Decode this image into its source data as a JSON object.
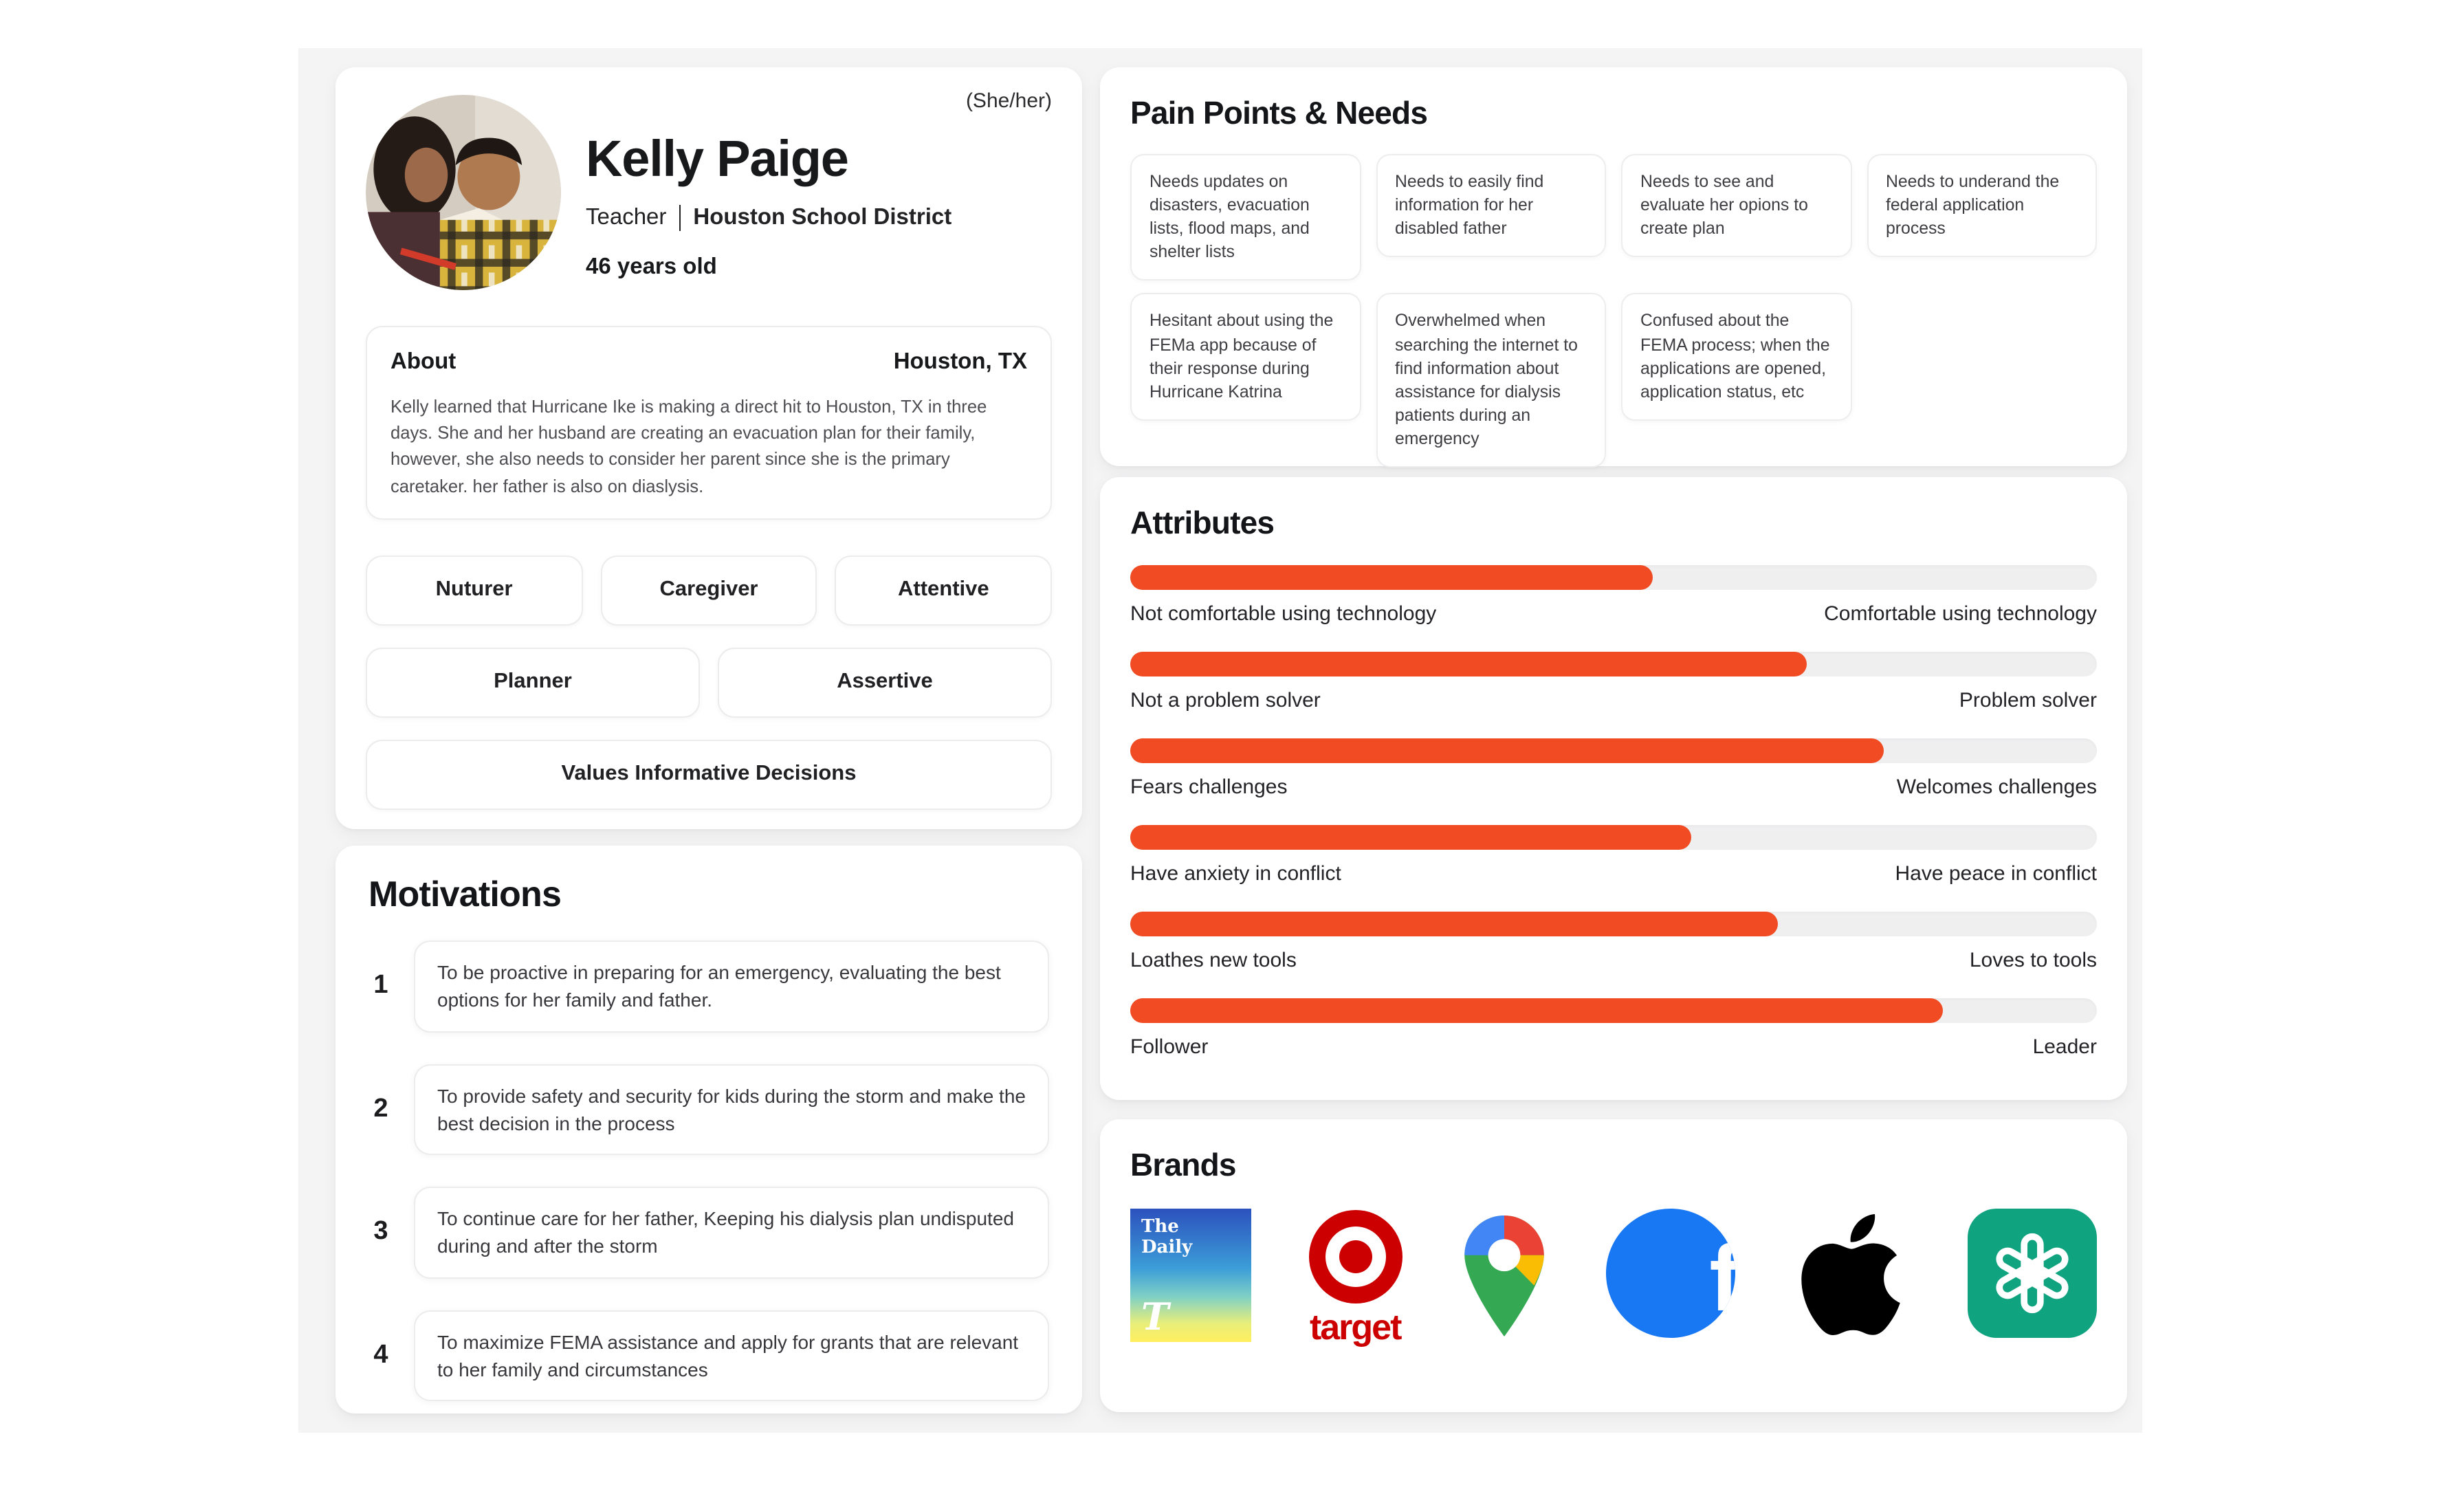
{
  "profile": {
    "pronouns": "(She/her)",
    "name": "Kelly Paige",
    "role": "Teacher",
    "org": "Houston School District",
    "age": "46 years old",
    "about_title": "About",
    "location": "Houston, TX",
    "about_text": "Kelly learned that Hurricane Ike is making a direct hit to Houston, TX in three days. She and her husband are creating an evacuation plan for their family, however, she also needs to consider her parent since she is the primary caretaker. her father is also on diaslysis.",
    "tags": [
      "Nuturer",
      "Caregiver",
      "Attentive",
      "Planner",
      "Assertive",
      "Values Informative Decisions"
    ]
  },
  "motivations": {
    "title": "Motivations",
    "items": [
      {
        "num": "1",
        "text": "To be proactive in preparing for an emergency, evaluating the best options for her family and father."
      },
      {
        "num": "2",
        "text": "To provide safety and security for kids during the storm and make the best decision in the process"
      },
      {
        "num": "3",
        "text": "To continue care for her father, Keeping his dialysis plan undisputed during and after the storm"
      },
      {
        "num": "4",
        "text": "To maximize FEMA assistance and apply for grants that are relevant to her family and circumstances"
      }
    ]
  },
  "pain_points": {
    "title": "Pain Points & Needs",
    "cards": [
      "Needs updates on disasters, evacuation lists, flood maps, and shelter lists",
      "Needs to easily find information for her disabled father",
      "Needs to see and evaluate her opions to create plan",
      "Needs to underand the federal application process",
      "Hesitant about using the FEMa app because of their response during Hurricane Katrina",
      "Overwhelmed when searching the internet to find information about assistance for dialysis patients during an emergency",
      "Confused about the FEMA process; when the applications are opened, application status, etc"
    ]
  },
  "attributes": {
    "title": "Attributes",
    "accent_color": "#f04b22",
    "track_color": "#efeff0",
    "sliders": [
      {
        "left": "Not comfortable using technology",
        "right": "Comfortable using technology",
        "value": 54
      },
      {
        "left": "Not a problem solver",
        "right": "Problem solver",
        "value": 70
      },
      {
        "left": "Fears challenges",
        "right": "Welcomes challenges",
        "value": 78
      },
      {
        "left": "Have anxiety in conflict",
        "right": "Have peace in conflict",
        "value": 58
      },
      {
        "left": "Loathes new tools",
        "right": "Loves to tools",
        "value": 67
      },
      {
        "left": "Follower",
        "right": "Leader",
        "value": 84
      }
    ]
  },
  "brands": {
    "title": "Brands",
    "the_daily": {
      "line1": "The",
      "line2": "Daily",
      "glyph": "T"
    },
    "target": {
      "wordmark": "target"
    },
    "facebook": {
      "glyph": "f"
    }
  }
}
